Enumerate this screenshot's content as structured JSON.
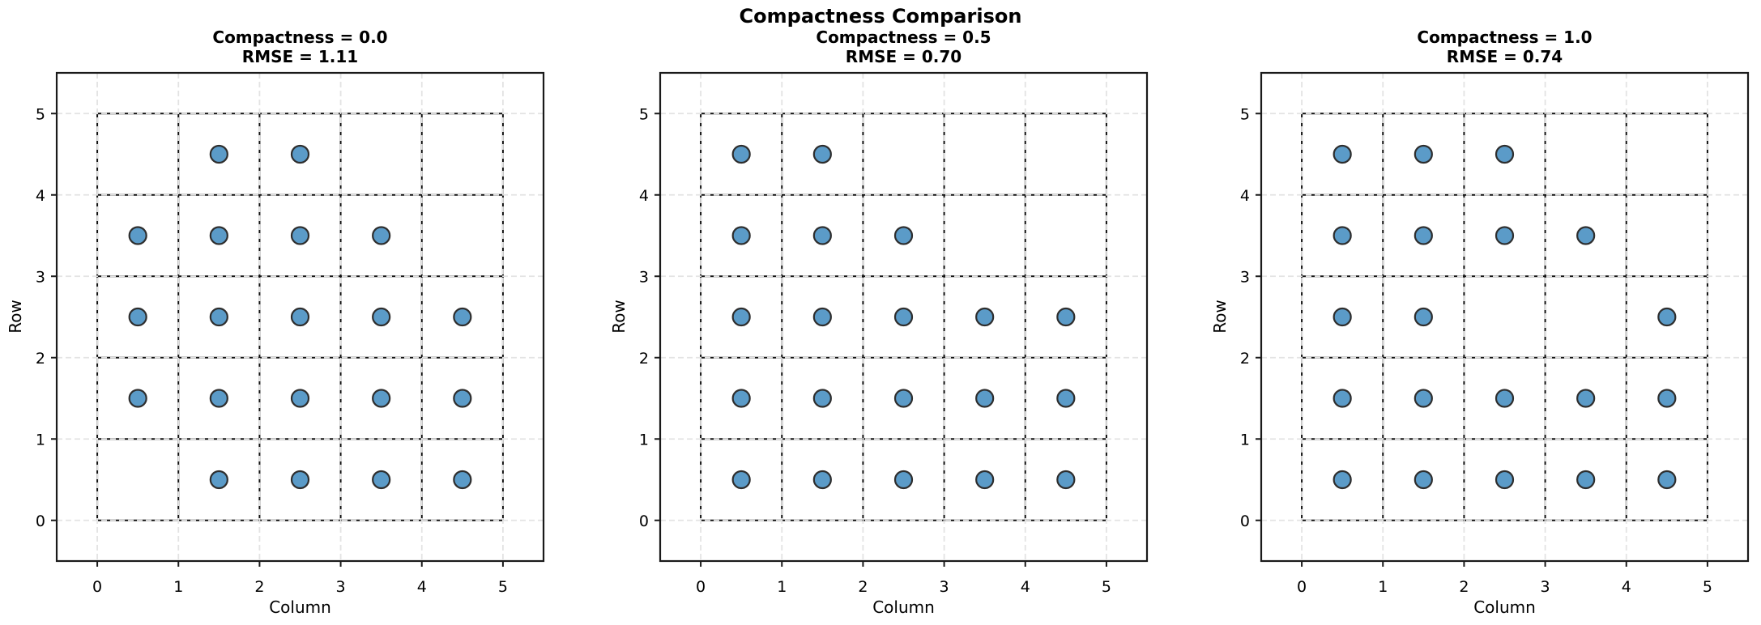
{
  "suptitle": "Compactness Comparison",
  "style": {
    "dot_fill": "#5B9BC8",
    "dot_edge": "#2E2E2E",
    "cell_border_color": "#111111",
    "grid_dash_color": "#e3e3e3",
    "spine_color": "#1a1a1a",
    "background": "#ffffff"
  },
  "chart_data": [
    {
      "type": "scatter",
      "title": [
        "Compactness = 0.0",
        "RMSE = 1.11"
      ],
      "compactness": 0.0,
      "rmse": 1.11,
      "xlabel": "Column",
      "ylabel": "Row",
      "xlim": [
        -0.5,
        5.5
      ],
      "ylim": [
        -0.5,
        5.5
      ],
      "xticks": [
        0,
        1,
        2,
        3,
        4,
        5
      ],
      "yticks": [
        0,
        1,
        2,
        3,
        4,
        5
      ],
      "cell_grid": {
        "x0": 0,
        "y0": 0,
        "x1": 5,
        "y1": 5,
        "cells": 5
      },
      "points": [
        [
          1.5,
          4.5
        ],
        [
          2.5,
          4.5
        ],
        [
          0.5,
          3.5
        ],
        [
          1.5,
          3.5
        ],
        [
          2.5,
          3.5
        ],
        [
          3.5,
          3.5
        ],
        [
          0.5,
          2.5
        ],
        [
          1.5,
          2.5
        ],
        [
          2.5,
          2.5
        ],
        [
          3.5,
          2.5
        ],
        [
          4.5,
          2.5
        ],
        [
          0.5,
          1.5
        ],
        [
          1.5,
          1.5
        ],
        [
          2.5,
          1.5
        ],
        [
          3.5,
          1.5
        ],
        [
          4.5,
          1.5
        ],
        [
          1.5,
          0.5
        ],
        [
          2.5,
          0.5
        ],
        [
          3.5,
          0.5
        ],
        [
          4.5,
          0.5
        ]
      ]
    },
    {
      "type": "scatter",
      "title": [
        "Compactness = 0.5",
        "RMSE = 0.70"
      ],
      "compactness": 0.5,
      "rmse": 0.7,
      "xlabel": "Column",
      "ylabel": "Row",
      "xlim": [
        -0.5,
        5.5
      ],
      "ylim": [
        -0.5,
        5.5
      ],
      "xticks": [
        0,
        1,
        2,
        3,
        4,
        5
      ],
      "yticks": [
        0,
        1,
        2,
        3,
        4,
        5
      ],
      "cell_grid": {
        "x0": 0,
        "y0": 0,
        "x1": 5,
        "y1": 5,
        "cells": 5
      },
      "points": [
        [
          0.5,
          4.5
        ],
        [
          1.5,
          4.5
        ],
        [
          0.5,
          3.5
        ],
        [
          1.5,
          3.5
        ],
        [
          2.5,
          3.5
        ],
        [
          0.5,
          2.5
        ],
        [
          1.5,
          2.5
        ],
        [
          2.5,
          2.5
        ],
        [
          3.5,
          2.5
        ],
        [
          4.5,
          2.5
        ],
        [
          0.5,
          1.5
        ],
        [
          1.5,
          1.5
        ],
        [
          2.5,
          1.5
        ],
        [
          3.5,
          1.5
        ],
        [
          4.5,
          1.5
        ],
        [
          0.5,
          0.5
        ],
        [
          1.5,
          0.5
        ],
        [
          2.5,
          0.5
        ],
        [
          3.5,
          0.5
        ],
        [
          4.5,
          0.5
        ]
      ]
    },
    {
      "type": "scatter",
      "title": [
        "Compactness = 1.0",
        "RMSE = 0.74"
      ],
      "compactness": 1.0,
      "rmse": 0.74,
      "xlabel": "Column",
      "ylabel": "Row",
      "xlim": [
        -0.5,
        5.5
      ],
      "ylim": [
        -0.5,
        5.5
      ],
      "xticks": [
        0,
        1,
        2,
        3,
        4,
        5
      ],
      "yticks": [
        0,
        1,
        2,
        3,
        4,
        5
      ],
      "cell_grid": {
        "x0": 0,
        "y0": 0,
        "x1": 5,
        "y1": 5,
        "cells": 5
      },
      "points": [
        [
          0.5,
          4.5
        ],
        [
          1.5,
          4.5
        ],
        [
          2.5,
          4.5
        ],
        [
          0.5,
          3.5
        ],
        [
          1.5,
          3.5
        ],
        [
          2.5,
          3.5
        ],
        [
          3.5,
          3.5
        ],
        [
          0.5,
          2.5
        ],
        [
          1.5,
          2.5
        ],
        [
          4.5,
          2.5
        ],
        [
          0.5,
          1.5
        ],
        [
          1.5,
          1.5
        ],
        [
          2.5,
          1.5
        ],
        [
          3.5,
          1.5
        ],
        [
          4.5,
          1.5
        ],
        [
          0.5,
          0.5
        ],
        [
          1.5,
          0.5
        ],
        [
          2.5,
          0.5
        ],
        [
          3.5,
          0.5
        ],
        [
          4.5,
          0.5
        ]
      ]
    }
  ]
}
